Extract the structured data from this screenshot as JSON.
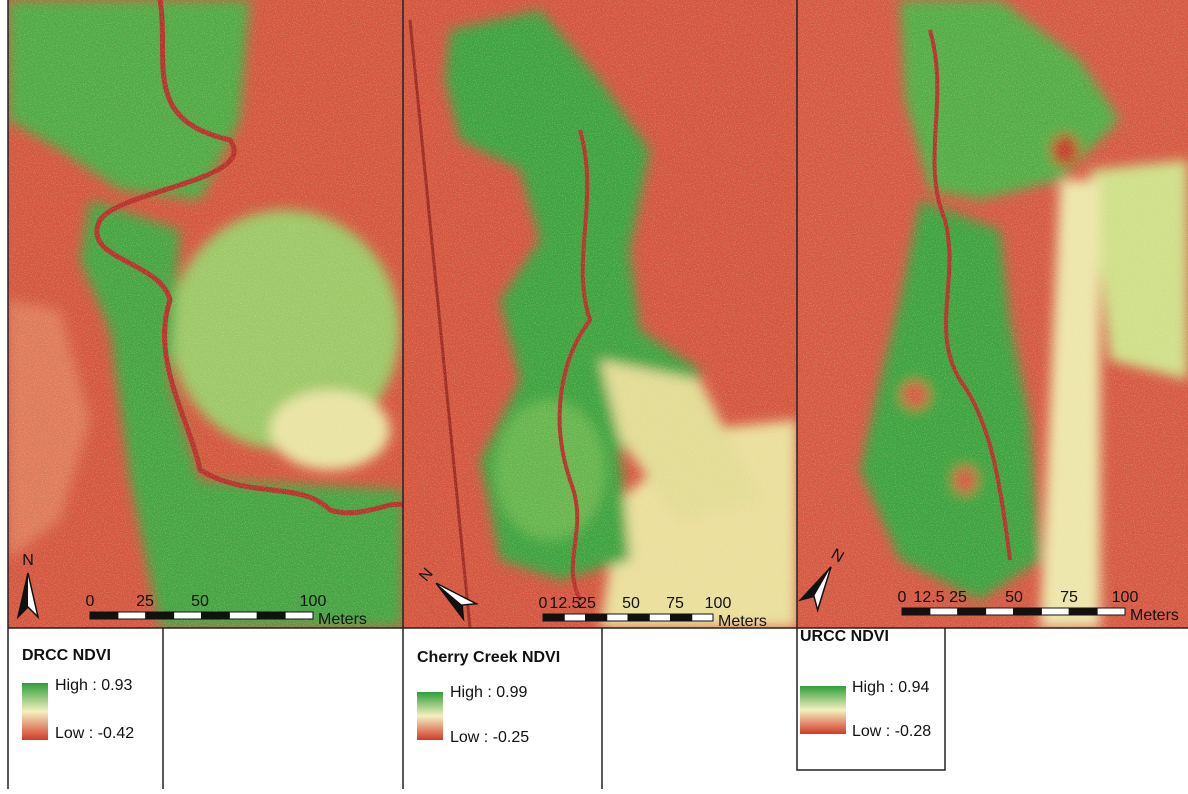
{
  "panels": [
    {
      "north": "N",
      "scale": {
        "labels": [
          "0",
          "25",
          "50",
          "100"
        ],
        "unit": "Meters"
      },
      "legend": {
        "title": "DRCC NDVI",
        "high": "High : 0.93",
        "low": "Low : -0.42"
      }
    },
    {
      "north": "N",
      "scale": {
        "labels": [
          "0",
          "12.5",
          "25",
          "50",
          "75",
          "100"
        ],
        "unit": "Meters"
      },
      "legend": {
        "title": "Cherry Creek NDVI",
        "high": "High : 0.99",
        "low": "Low : -0.25"
      }
    },
    {
      "north": "N",
      "scale": {
        "labels": [
          "0",
          "12.5",
          "25",
          "50",
          "75",
          "100"
        ],
        "unit": "Meters"
      },
      "legend": {
        "title": "URCC NDVI",
        "high": "High : 0.94",
        "low": "Low : -0.28"
      }
    }
  ]
}
